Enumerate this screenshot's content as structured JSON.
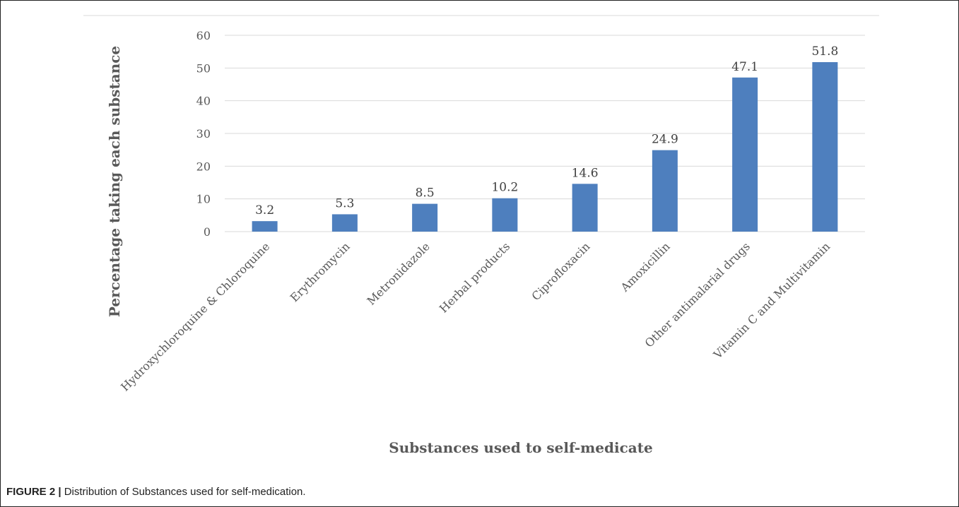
{
  "figure": {
    "caption_label": "FIGURE 2 |",
    "caption_text": " Distribution of Substances used for self-medication."
  },
  "chart_data": {
    "type": "bar",
    "title": "",
    "xlabel": "Substances used to self-medicate",
    "ylabel": "Percentage taking each  substance",
    "categories": [
      "Hydroxychloroquine & Chloroquine",
      "Erythromycin",
      "Metronidazole",
      "Herbal products",
      "Ciprofloxacin",
      "Amoxicillin",
      "Other antimalarial drugs",
      "Vitamin C and Multivitamin"
    ],
    "values": [
      3.2,
      5.3,
      8.5,
      10.2,
      14.6,
      24.9,
      47.1,
      51.8
    ],
    "data_labels": [
      "3.2",
      "5.3",
      "8.5",
      "10.2",
      "14.6",
      "24.9",
      "47.1",
      "51.8"
    ],
    "yticks": [
      0,
      10,
      20,
      30,
      40,
      50,
      60
    ],
    "ylim": [
      0,
      60
    ],
    "grid": true,
    "legend": "none",
    "colors": {
      "bar": "#4e7fbe",
      "grid": "#d9d9d9",
      "text": "#595959"
    }
  }
}
